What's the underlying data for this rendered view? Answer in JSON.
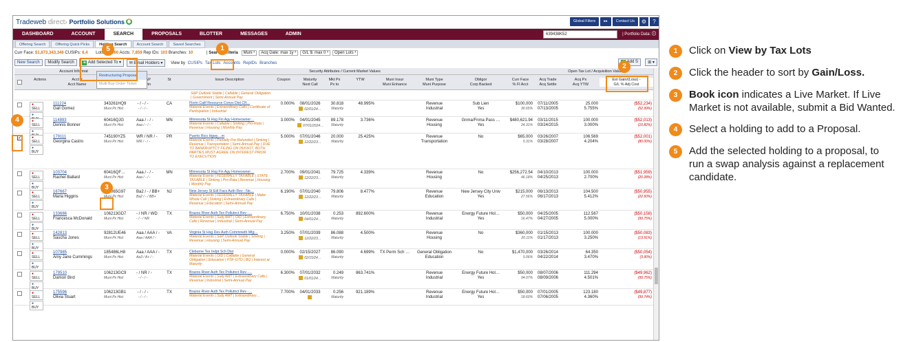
{
  "app": {
    "logo_brand": "Tradeweb",
    "logo_sub": "direct›",
    "logo_product": "Portfolio Solutions",
    "top_buttons": [
      "Global Filters",
      "Contact Us"
    ],
    "nav": [
      "DASHBOARD",
      "ACCOUNT",
      "SEARCH",
      "PROPOSALS",
      "BLOTTER",
      "MESSAGES",
      "ADMIN"
    ],
    "nav_active": "SEARCH",
    "search_box_value": "639438K52",
    "portfolio_date": "| Portfolio Data:",
    "subtabs": [
      "Offering Search",
      "Offering Quick Picks",
      "Holding Search",
      "Account Search",
      "Saved Searches"
    ],
    "subtab_active": "Holding Search"
  },
  "summary": {
    "curr_face_label": "Curr Face:",
    "curr_face": "$1,873,343,346",
    "cusips_label": "CUSIPs:",
    "cusips": "6,4",
    "lots_label": "Lots:",
    "lots": "22,960",
    "accts_label": "Accts:",
    "accts": "7,859",
    "rep_ids_label": "Rep IDs:",
    "rep_ids": "103",
    "branches_label": "Branches:",
    "branches": "10",
    "criteria_label": "Search Criteria",
    "criteria": [
      "Muni ˣ",
      "Acq Date: max 1y ˣ",
      "G/L $: max 0 ˣ",
      "Open Lots ˣ"
    ]
  },
  "toolbar": {
    "new_search": "New Search",
    "modify_search": "Modify Search",
    "add_selected": "Add Selected To ▾",
    "email_holders": "Email Holders ▾",
    "view_by": "View by",
    "views": [
      "CUSIPs",
      "Tax Lots",
      "Accounts",
      "RepIDs",
      "Branches"
    ],
    "add_s": "Add S"
  },
  "add_selected_menu": [
    "Restructuring Proposal",
    "Multi Buy Order Ticket"
  ],
  "grid": {
    "group_headers": {
      "account_info": "Account Informat",
      "security": "Security Attributes / Current Market Values",
      "tax_lot": "Open Tax Lot / Acquisition Values"
    },
    "columns": [
      "Actions",
      "Acct #\nAcct Name",
      "CUSIP",
      "Mdy/S&P/Fitch\nUnderlying",
      "St",
      "Issue Description",
      "Coupon",
      "Maturity\nNext Call",
      "Mkt Px\nPx to",
      "YTW",
      "Muni Insur\nMuni Enhance",
      "Muni Type\nMuni Purpose",
      "Obligor\nCorp Backed",
      "Curr Face\n% Fl Acct",
      "Acq Trade\nAcq Settle",
      "Acq Px\nAcq YTW",
      "Est Gain/(Loss) -\nG/L % Adj Cost"
    ],
    "first_partial_desc": "S&P Outlook Stable | Callable | General Obligation | Government | Semi-Annual Pay",
    "rows": [
      {
        "acct": "111224",
        "name": "Gail Gomez",
        "cusip": "343261HQ9",
        "cusip2": "Muni Px Hist",
        "rating": "- / - / -",
        "rating2": "- / - / -",
        "st": "CA",
        "desc_t": "Florin Calif Resource Consv Dist Cft…",
        "desc_s": "Material Events | Extraordinary Calls | Certificate of Participation | Industrial",
        "coupon": "0.000%",
        "mat": "08/01/2026",
        "mat2": "02/01/24…",
        "px": "30.818",
        "px2": "Maturity",
        "ytw": "48.995%",
        "insur": "",
        "mtype": "Revenue",
        "mtype2": "Industrial",
        "oblig": "Sub Lien",
        "oblig2": "Yes",
        "face": "$100,000",
        "face2": "30.65%",
        "acq": "07/11/2005",
        "acq2": "07/13/2005",
        "acqpx": "25.000",
        "acqpx2": "5.755%",
        "gl": "($52,234)",
        "gl2": "(52.99%)",
        "checked": false
      },
      {
        "acct": "114893",
        "name": "Dennis Bonner",
        "cusip": "60416QJG",
        "cusip2": "Muni Px Hist",
        "rating": "Aaa / - / -",
        "rating2": "Aaa / - / -",
        "st": "MN",
        "desc_t": "Minnesota St Hsg Fin Agy Homeowner…",
        "desc_s": "Material Events | Callable | Sinking | Pro-Rata | Revenue | Housing | Monthly Pay",
        "coupon": "3.000%",
        "mat": "04/01/2045",
        "mat2": "07/01/2024…",
        "px": "89.178",
        "px2": "Maturity",
        "ytw": "3.736%",
        "insur": "",
        "mtype": "Revenue",
        "mtype2": "Housing",
        "oblig": "Gnma/Fnma Pass …",
        "oblig2": "Yes",
        "face": "$480,621.94",
        "face2": "24.31%",
        "acq": "03/11/2015",
        "acq2": "03/24/2015",
        "acqpx": "100.000",
        "acqpx2": "3.000%",
        "gl": "($52,013)",
        "gl2": "(10.82%)",
        "checked": false
      },
      {
        "acct": "179111",
        "name": "Georgina Castro",
        "cusip": "745190YZ5",
        "cusip2": "Muni Px Hist",
        "rating": "WR / NR / -",
        "rating2": "WR / - / -",
        "st": "PR",
        "desc_t": "Puerto Rico Hgwy…m",
        "desc_s": "Material Events | Partially Pre-Refunded | Sinking | Revenue | Transportation | Semi-Annual Pay | DUE TO BANKRUPTCY FILING ON 05/03/17, BOTH PARTIES MUST AGREE ON INTEREST PRIOR TO EXECUTION",
        "coupon": "5.000%",
        "mat": "07/01/2046",
        "mat2": "12/22/23…",
        "px": "20.000",
        "px2": "Maturity",
        "ytw": "25.425%",
        "insur": "",
        "mtype": "Revenue",
        "mtype2": "Transportation",
        "oblig": "No",
        "oblig2": "",
        "face": "$65,000",
        "face2": "5.31%",
        "acq": "03/26/2007",
        "acq2": "03/28/2007",
        "acqpx": "106.569",
        "acqpx2": "4.204%",
        "gl": "($52,001)",
        "gl2": "(80.00%)",
        "checked": true
      },
      {
        "acct": "103704",
        "name": "Rachel Ballard",
        "cusip": "60416QF…",
        "cusip2": "Muni Px Hist",
        "rating": "Aaa / - / -",
        "rating2": "Aaa / - / -",
        "st": "MN",
        "desc_t": "Minnesota St Hsg Fin Agy Homeowner…",
        "desc_s": "Material Events | FEDERALLY TAXABLE | STATE TAXABLE | Sinking | Pro-Rata | Revenue | Housing | Monthly Pay",
        "coupon": "2.700%",
        "mat": "09/01/2041",
        "mat2": "12/22/23…",
        "px": "79.725",
        "px2": "Maturity",
        "ytw": "4.339%",
        "insur": "",
        "mtype": "Revenue",
        "mtype2": "Housing",
        "oblig": "No",
        "oblig2": "",
        "face": "$256,272.54",
        "face2": "46.18%",
        "acq": "04/10/2013",
        "acq2": "04/25/2013",
        "acqpx": "100.000",
        "acqpx2": "2.700%",
        "gl": "($51,959)",
        "gl2": "(20.28%)",
        "checked": false
      },
      {
        "acct": "167667",
        "name": "Maria Higgins",
        "cusip": "646065G97",
        "cusip2": "Muni Px Hist",
        "rating": "Ba2 / - / BB+",
        "rating2": "Ba2 / - / BB+",
        "st": "NJ",
        "desc_t": "New Jersey St Edl Facs Auth Rev - Ne…",
        "desc_s": "Material Events | FEDERALLY TAXABLE | Make Whole Call | Sinking | Extraordinary Calls | Revenue | Education | Semi-Annual Pay",
        "coupon": "6.190%",
        "mat": "07/01/2040",
        "mat2": "12/22/23…",
        "px": "79.806",
        "px2": "Maturity",
        "ytw": "8.477%",
        "insur": "",
        "mtype": "Revenue",
        "mtype2": "Education",
        "oblig": "New Jersey City Univ",
        "oblig2": "Yes",
        "face": "$215,000",
        "face2": "27.56%",
        "acq": "06/13/2013",
        "acq2": "06/17/2013",
        "acqpx": "104.500",
        "acqpx2": "5.412%",
        "gl": "($50,955)",
        "gl2": "(22.60%)",
        "checked": false
      },
      {
        "acct": "133686",
        "name": "Francesca McDonald",
        "cusip": "106213GD7",
        "cusip2": "Muni Px Hist",
        "rating": "- / NR / WD",
        "rating2": "- / - / NR",
        "st": "TX",
        "desc_t": "Brazos River Auth Tex Pollutnct Rev -…",
        "desc_s": "Material Events | Subj AMT | OID | Extraordinary Calls | Revenue | Industrial | Semi-Annual Pay",
        "coupon": "6.750%",
        "mat": "10/01/2038",
        "mat2": "04/01/24…",
        "px": "0.253",
        "px2": "Maturity",
        "ytw": "892.600%",
        "insur": "",
        "mtype": "Revenue",
        "mtype2": "Industrial",
        "oblig": "Energy Future Hol…",
        "oblig2": "Yes",
        "face": "$50,000",
        "face2": "16.47%",
        "acq": "04/25/2005",
        "acq2": "04/27/2005",
        "acqpx": "112.567",
        "acqpx2": "5.000%",
        "gl": "($50,158)",
        "gl2": "(99.75%)",
        "checked": false
      },
      {
        "acct": "142813",
        "name": "Sascha Jones",
        "cusip": "92812UE46",
        "cusip2": "Muni Px Hist",
        "rating": "Aaa / AAA / -",
        "rating2": "Aaa / AAA / -",
        "st": "VA",
        "desc_t": "Virginia St Hsg Dev Auth Commnwth Mtg…",
        "desc_s": "Material Events | S&P Outlook Stable | Sinking | Revenue | Housing | Semi-Annual Pay",
        "coupon": "3.250%",
        "mat": "07/01/2039",
        "mat2": "12/22/23…",
        "px": "86.088",
        "px2": "Maturity",
        "ytw": "4.500%",
        "insur": "",
        "mtype": "Revenue",
        "mtype2": "Housing",
        "oblig": "No",
        "oblig2": "",
        "face": "$360,000",
        "face2": "20.11%",
        "acq": "01/15/2013",
        "acq2": "01/17/2013",
        "acqpx": "100.000",
        "acqpx2": "3.250%",
        "gl": "($50,083)",
        "gl2": "(13.91%)",
        "checked": false
      },
      {
        "acct": "107985",
        "name": "Amy Jane Cummings",
        "cusip": "185486LH8",
        "cusip2": "Muni Px Hist",
        "rating": "Aaa / AAA / -",
        "rating2": "Aa3 / A+ / -",
        "st": "TX",
        "desc_t": "Cleburne Tex Indpt Sch Dist",
        "desc_s": "Material Events | OID | Callable | General Obligation | Education | PSF-GTD | BQ | Interest at Maturity",
        "coupon": "0.000%",
        "mat": "02/15/2027",
        "mat2": "02/15/24…",
        "px": "86.090",
        "px2": "Maturity",
        "ytw": "4.699%",
        "insur": "TX Perm Sch …",
        "mtype": "General Obligation",
        "mtype2": "Education",
        "oblig": "No",
        "oblig2": "",
        "face": "$1,470,000",
        "face2": "5.06%",
        "acq": "03/26/2014",
        "acq2": "04/22/2014",
        "acqpx": "64.350",
        "acqpx2": "3.470%",
        "gl": "($50,054)",
        "gl2": "(3.90%)",
        "checked": false
      },
      {
        "acct": "179510",
        "name": "Damon Bird",
        "cusip": "106213GC9",
        "cusip2": "Muni Px Hist",
        "rating": "- / NR / -",
        "rating2": "- / - / -",
        "st": "TX",
        "desc_t": "Brazos River Auth Tex Pollutnct Rev -…",
        "desc_s": "Material Events | Subj AMT | Extraordinary Calls | Revenue | Industrial | Semi-Annual Pay",
        "coupon": "6.300%",
        "mat": "07/01/2032",
        "mat2": "01/01/24…",
        "px": "0.249",
        "px2": "Maturity",
        "ytw": "863.741%",
        "insur": "",
        "mtype": "Revenue",
        "mtype2": "Industrial",
        "oblig": "Energy Future Hol…",
        "oblig2": "Yes",
        "face": "$50,000",
        "face2": "94.07%",
        "acq": "08/07/2006",
        "acq2": "08/09/2006",
        "acqpx": "111.294",
        "acqpx2": "4.501%",
        "gl": "($49,962)",
        "gl2": "(99.75%)",
        "checked": false
      },
      {
        "acct": "175596",
        "name": "Olivia Stuart",
        "cusip": "106213GB1",
        "cusip2": "Muni Px Hist",
        "rating": "- / - / -",
        "rating2": "- / - / -",
        "st": "TX",
        "desc_t": "Brazos River Auth Tex Pollutnct Rev -…",
        "desc_s": "Material Events | Subj AMT | Extraordinary…",
        "coupon": "7.700%",
        "mat": "04/01/2033",
        "mat2": "",
        "px": "0.256",
        "px2": "Maturity",
        "ytw": "921.189%",
        "insur": "",
        "mtype": "Revenue",
        "mtype2": "Industrial",
        "oblig": "Energy Future Hol…",
        "oblig2": "Yes",
        "face": "$50,000",
        "face2": "18.60%",
        "acq": "07/01/2005",
        "acq2": "07/06/2005",
        "acqpx": "123.180",
        "acqpx2": "4.360%",
        "gl": "($49,877)",
        "gl2": "(99.74%)",
        "checked": false
      }
    ],
    "action_sell": "SELL",
    "action_buy": "BUY"
  },
  "callouts": [
    "1",
    "2",
    "3",
    "4",
    "5"
  ],
  "instructions": [
    {
      "num": "1",
      "pre": "Click on ",
      "bold": "View by Tax Lots",
      "post": ""
    },
    {
      "num": "2",
      "pre": "Click the header to sort by ",
      "bold": "Gain/Loss.",
      "post": ""
    },
    {
      "num": "3",
      "pre": "",
      "bold": "Book icon",
      "post": " indicates a Live Market. If Live Market is not available, submit a Bid Wanted."
    },
    {
      "num": "4",
      "pre": "Select a holding to add to a Proposal.",
      "bold": "",
      "post": ""
    },
    {
      "num": "5",
      "pre": "Add the selected holding to a proposal, to run a swap analysis against a replacement candidate.",
      "bold": "",
      "post": ""
    }
  ],
  "colors": {
    "accent": "#f08a1a",
    "nav_bg": "#6b0f2e",
    "brand": "#1f3d80",
    "link": "#2a5499",
    "negative": "#c00000"
  }
}
